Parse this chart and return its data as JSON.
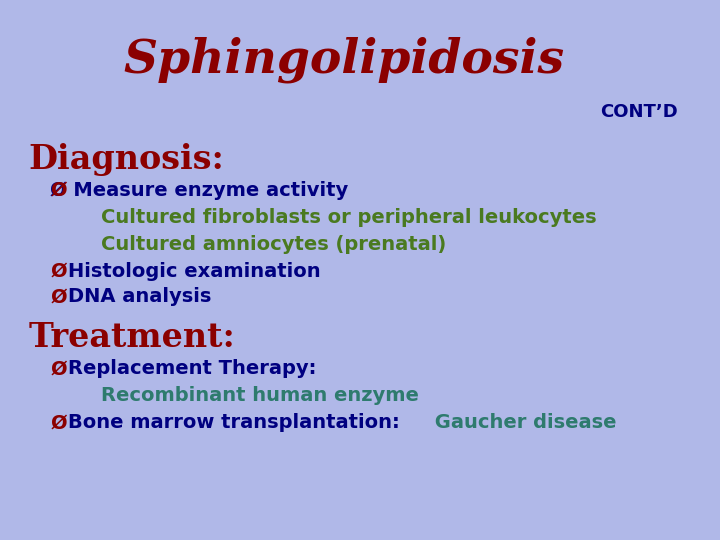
{
  "bg_color": "#b0b8e8",
  "header_bg": "#00ffff",
  "header_border": "#4040a0",
  "title_text": "Sphingolipidosis",
  "title_color": "#8b0000",
  "contd_text": "CONT’D",
  "contd_color": "#000080",
  "diagnosis_label": "Diagnosis:",
  "diagnosis_color": "#8b0000",
  "treatment_label": "Treatment:",
  "treatment_color": "#8b0000",
  "bullet": "Ø",
  "bullet_color": "#8b0000",
  "bullet_items_diagnosis": [
    "Measure enzyme activity",
    "Histologic examination",
    "DNA analysis"
  ],
  "sub_items_diagnosis": [
    "Cultured fibroblasts or peripheral leukocytes",
    "Cultured amniocytes (prenatal)"
  ],
  "bullet_items_treatment_1": "Replacement Therapy:",
  "treatment_sub1": "Recombinant human enzyme",
  "treatment_bullet2_dark": "Bone marrow transplantation:",
  "treatment_bullet2_teal": " Gaucher disease",
  "dark_navy": "#000080",
  "olive_green": "#4a7a20",
  "teal_green": "#2e7b6e",
  "body_font_size": 14,
  "sub_font_size": 14,
  "section_font_size": 24,
  "title_font_size": 34,
  "contd_font_size": 13
}
